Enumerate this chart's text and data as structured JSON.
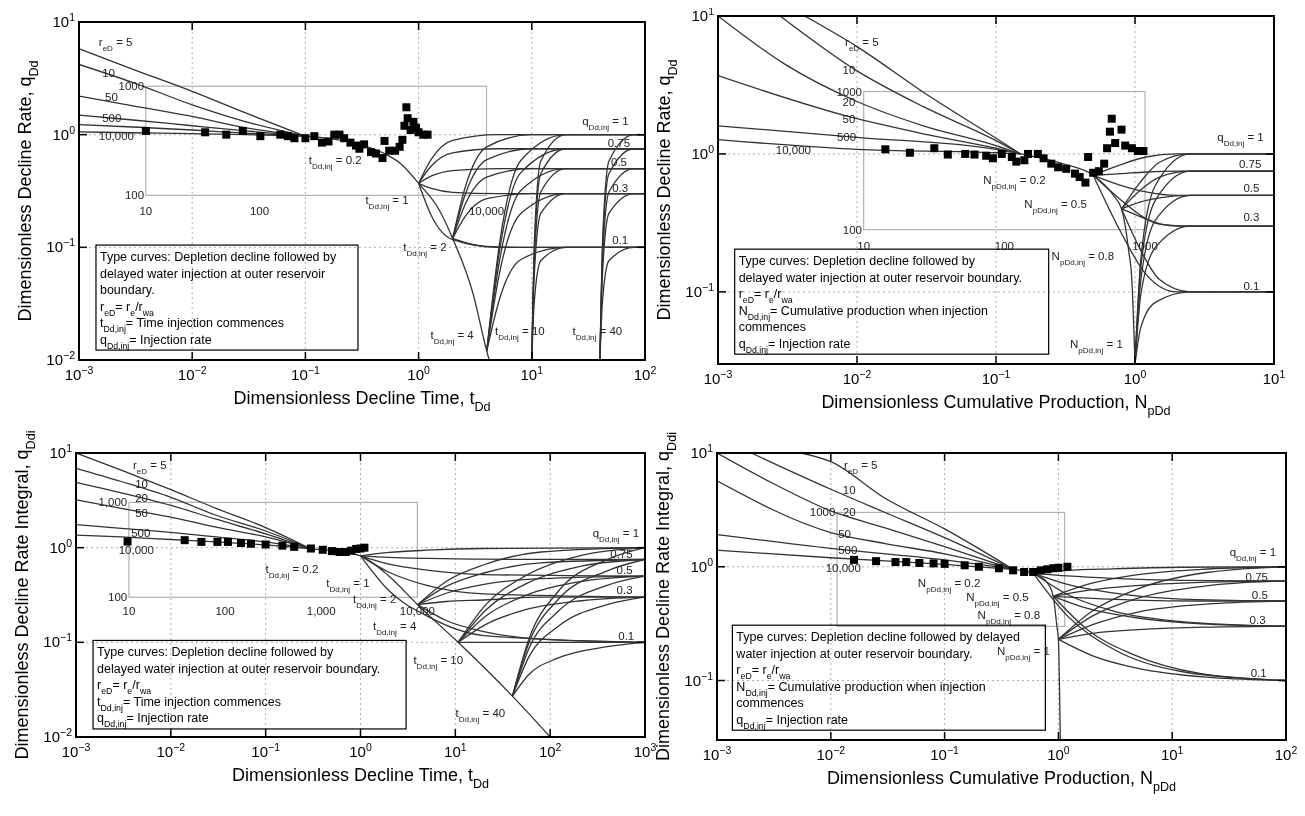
{
  "chart_data": [
    {
      "type": "line",
      "color": "#333333",
      "log": "xy",
      "grid": true,
      "xlabel": "Dimensionless Decline Time, t$_{Dd}$",
      "ylabel": "Dimensionless Decline Rate, q$_{Dd}$",
      "xlim": [
        0.001,
        100
      ],
      "ylim": [
        0.01,
        10
      ],
      "xticks": [
        {
          "value": 0.001,
          "label": "10$^{−3}$"
        },
        {
          "value": 0.01,
          "label": "10$^{−2}$"
        },
        {
          "value": 0.1,
          "label": "10$^{−1}$"
        },
        {
          "value": 1,
          "label": "10$^{0}$"
        },
        {
          "value": 10,
          "label": "10$^{1}$"
        },
        {
          "value": 100,
          "label": "10$^{2}$"
        }
      ],
      "yticks": [
        {
          "value": 0.01,
          "label": "10$^{−2}$"
        },
        {
          "value": 0.1,
          "label": "10$^{−1}$"
        },
        {
          "value": 1,
          "label": "10$^{0}$"
        },
        {
          "value": 10,
          "label": "10$^{1}$"
        }
      ],
      "series": [
        {
          "x": [
            0.001,
            0.003,
            0.01,
            0.03,
            0.1
          ],
          "values": [
            5.8,
            3.8,
            2.42,
            1.55,
            0.97
          ]
        },
        {
          "x": [
            0.001,
            0.003,
            0.01,
            0.03,
            0.1
          ],
          "values": [
            4.2,
            2.9,
            1.84,
            1.3,
            0.97
          ]
        },
        {
          "x": [
            0.001,
            0.003,
            0.01,
            0.03,
            0.1
          ],
          "values": [
            2.2,
            1.8,
            1.45,
            1.15,
            0.97
          ]
        },
        {
          "x": [
            0.001,
            0.003,
            0.01,
            0.03,
            0.1
          ],
          "values": [
            1.49,
            1.35,
            1.2,
            1.08,
            0.97
          ]
        },
        {
          "x": [
            0.001,
            0.003,
            0.01,
            0.03,
            0.1
          ],
          "values": [
            1.23,
            1.17,
            1.1,
            1.03,
            0.97
          ]
        },
        {
          "x": [
            0.001,
            0.003,
            0.01,
            0.03,
            0.1
          ],
          "values": [
            1.06,
            1.04,
            1.02,
            1.0,
            0.97
          ]
        },
        {
          "x": [
            0.1,
            0.3,
            0.5,
            0.7,
            1,
            1.5,
            2,
            3,
            4,
            4.2
          ],
          "values": [
            0.97,
            0.82,
            0.68,
            0.55,
            0.37,
            0.22,
            0.12,
            0.04,
            0.012,
            0.01
          ]
        },
        {
          "x": [
            1,
            1.3,
            2,
            5,
            100
          ],
          "values": [
            0.37,
            0.61,
            0.89,
            1,
            1
          ]
        },
        {
          "x": [
            1,
            1.3,
            2,
            5,
            100
          ],
          "values": [
            0.37,
            0.53,
            0.69,
            0.75,
            0.75
          ]
        },
        {
          "x": [
            1,
            1.3,
            2,
            5,
            100
          ],
          "values": [
            0.37,
            0.43,
            0.48,
            0.5,
            0.5
          ]
        },
        {
          "x": [
            1,
            1.3,
            2,
            5,
            100
          ],
          "values": [
            0.37,
            0.333,
            0.308,
            0.3,
            0.3
          ]
        },
        {
          "x": [
            1,
            1.3,
            2,
            5,
            100
          ],
          "values": [
            0.37,
            0.19,
            0.117,
            0.1,
            0.1
          ]
        },
        {
          "x": [
            2,
            2.6,
            4,
            10,
            100
          ],
          "values": [
            0.12,
            0.35,
            0.78,
            1,
            1
          ]
        },
        {
          "x": [
            2,
            2.6,
            4,
            10,
            100
          ],
          "values": [
            0.12,
            0.3,
            0.6,
            0.75,
            0.75
          ]
        },
        {
          "x": [
            2,
            2.6,
            4,
            10,
            100
          ],
          "values": [
            0.12,
            0.245,
            0.42,
            0.5,
            0.5
          ]
        },
        {
          "x": [
            2,
            2.6,
            4,
            10,
            100
          ],
          "values": [
            0.12,
            0.19,
            0.27,
            0.3,
            0.3
          ]
        },
        {
          "x": [
            2,
            2.6,
            4,
            10,
            100
          ],
          "values": [
            0.12,
            0.11,
            0.102,
            0.1,
            0.1
          ]
        },
        {
          "x": [
            4,
            5.2,
            8,
            20,
            100
          ],
          "values": [
            0.012,
            0.11,
            0.59,
            1,
            1
          ]
        },
        {
          "x": [
            4,
            5.2,
            8,
            20,
            100
          ],
          "values": [
            0.012,
            0.095,
            0.46,
            0.75,
            0.75
          ]
        },
        {
          "x": [
            4,
            5.2,
            8,
            20,
            100
          ],
          "values": [
            0.012,
            0.077,
            0.32,
            0.5,
            0.5
          ]
        },
        {
          "x": [
            4,
            5.2,
            8,
            20,
            100
          ],
          "values": [
            0.012,
            0.06,
            0.2,
            0.3,
            0.3
          ]
        },
        {
          "x": [
            4,
            5.2,
            8,
            20,
            100
          ],
          "values": [
            0.012,
            0.035,
            0.078,
            0.1,
            0.1
          ]
        },
        {
          "x": [
            10,
            10.5,
            12,
            20,
            100
          ],
          "values": [
            0.01,
            0.1,
            0.58,
            1,
            1
          ]
        },
        {
          "x": [
            10,
            10.5,
            12,
            20,
            100
          ],
          "values": [
            0.01,
            0.087,
            0.45,
            0.75,
            0.75
          ]
        },
        {
          "x": [
            10,
            10.5,
            12,
            20,
            100
          ],
          "values": [
            0.01,
            0.071,
            0.31,
            0.5,
            0.5
          ]
        },
        {
          "x": [
            10,
            10.5,
            12,
            20,
            100
          ],
          "values": [
            0.01,
            0.055,
            0.2,
            0.3,
            0.3
          ]
        },
        {
          "x": [
            10,
            10.5,
            12,
            20,
            100
          ],
          "values": [
            0.01,
            0.032,
            0.076,
            0.1,
            0.1
          ]
        },
        {
          "x": [
            40,
            42,
            48,
            80,
            100
          ],
          "values": [
            0.01,
            0.1,
            0.58,
            1,
            1
          ]
        },
        {
          "x": [
            40,
            42,
            48,
            80,
            100
          ],
          "values": [
            0.01,
            0.087,
            0.45,
            0.75,
            0.75
          ]
        },
        {
          "x": [
            40,
            42,
            48,
            80,
            100
          ],
          "values": [
            0.01,
            0.071,
            0.31,
            0.5,
            0.5
          ]
        },
        {
          "x": [
            40,
            42,
            48,
            80,
            100
          ],
          "values": [
            0.01,
            0.055,
            0.2,
            0.3,
            0.3
          ]
        },
        {
          "x": [
            40,
            42,
            48,
            80,
            100
          ],
          "values": [
            0.01,
            0.032,
            0.076,
            0.1,
            0.1
          ]
        },
        {
          "type": "scatter",
          "color": "#000000",
          "marker": "square",
          "x": [
            0.0039,
            0.013,
            0.02,
            0.028,
            0.04,
            0.06,
            0.07,
            0.08,
            0.1,
            0.12,
            0.14,
            0.16,
            0.18,
            0.2,
            0.22,
            0.25,
            0.28,
            0.3,
            0.33,
            0.38,
            0.42,
            0.48,
            0.5,
            0.55,
            0.62,
            0.68,
            0.72,
            0.75,
            0.78,
            0.8,
            0.85,
            0.9,
            0.95,
            1.0,
            1.1,
            1.2
          ],
          "values": [
            1.08,
            1.05,
            1.0,
            1.08,
            0.97,
            1.0,
            0.97,
            0.93,
            0.93,
            0.97,
            0.85,
            0.87,
            1.0,
            1.0,
            0.93,
            0.85,
            0.8,
            0.75,
            0.82,
            0.7,
            0.68,
            0.62,
            0.88,
            0.72,
            0.72,
            0.78,
            0.9,
            1.2,
            1.75,
            1.4,
            1.1,
            1.3,
            1.15,
            1.05,
            1.0,
            1.0
          ]
        }
      ],
      "annotations": [
        "r$_{eD}$ = 5",
        "10",
        "50",
        "500",
        "10,000",
        "t$_{Dd,inj}$ = 0.2",
        "t$_{Dd,inj}$ = 1",
        "t$_{Dd,inj}$ = 2",
        "t$_{Dd,inj}$ = 4",
        "t$_{Dd,inj}$ = 10",
        "t$_{Dd,inj}$ = 40",
        "q$_{Dd,inj}$ = 1",
        "0.75",
        "0.5",
        "0.3",
        "0.1",
        "10",
        "100",
        "10,000",
        "100",
        "1000",
        "Type curves: Depletion decline followed by\ndelayed water injection at outer reservoir\nboundary.\nr$_{eD}$= r$_{e}$/r$_{wa}$\nt$_{Dd,inj}$= Time injection commences\nq$_{Dd,inj}$= Injection rate"
      ]
    },
    {
      "type": "line",
      "color": "#333333",
      "log": "xy",
      "grid": true,
      "xlabel": "Dimensionless Cumulative Production, N$_{pDd}$",
      "ylabel": "Dimensionless Decline Rate, q$_{Dd}$",
      "xlim": [
        0.001,
        10
      ],
      "ylim": [
        0.03,
        10
      ],
      "xticks": [
        {
          "value": 0.001,
          "label": "10$^{−3}$"
        },
        {
          "value": 0.01,
          "label": "10$^{−2}$"
        },
        {
          "value": 0.1,
          "label": "10$^{−1}$"
        },
        {
          "value": 1,
          "label": "10$^{0}$"
        },
        {
          "value": 10,
          "label": "10$^{1}$"
        }
      ],
      "yticks": [
        {
          "value": 0.1,
          "label": "10$^{−1}$"
        },
        {
          "value": 1,
          "label": "10$^{0}$"
        },
        {
          "value": 10,
          "label": "10$^{1}$"
        }
      ],
      "series": [
        {
          "x": [
            0.0042,
            0.01,
            0.03,
            0.1,
            0.15
          ],
          "values": [
            10,
            6,
            2.8,
            1.3,
            1.0
          ]
        },
        {
          "x": [
            0.0028,
            0.01,
            0.03,
            0.1,
            0.15
          ],
          "values": [
            10,
            4,
            2.2,
            1.25,
            1.0
          ]
        },
        {
          "x": [
            0.001,
            0.003,
            0.01,
            0.03,
            0.1,
            0.15
          ],
          "values": [
            10,
            4.5,
            2.4,
            1.6,
            1.15,
            1.0
          ]
        },
        {
          "x": [
            0.001,
            0.01,
            0.03,
            0.1,
            0.15
          ],
          "values": [
            3.7,
            1.8,
            1.4,
            1.1,
            1.0
          ]
        },
        {
          "x": [
            0.001,
            0.01,
            0.1,
            0.15
          ],
          "values": [
            1.6,
            1.32,
            1.08,
            1.0
          ]
        },
        {
          "x": [
            0.001,
            0.01,
            0.1,
            0.15
          ],
          "values": [
            1.27,
            1.08,
            1.02,
            1.0
          ]
        },
        {
          "x": [
            0.15,
            0.3,
            0.5,
            0.7,
            0.8,
            0.9,
            0.95,
            1.0
          ],
          "values": [
            1.0,
            0.85,
            0.7,
            0.5,
            0.4,
            0.2,
            0.12,
            0.03
          ]
        },
        {
          "x": [
            0.5,
            0.8,
            1.2,
            2,
            10
          ],
          "values": [
            0.7,
            0.84,
            0.95,
            1,
            1
          ]
        },
        {
          "x": [
            0.5,
            0.8,
            1.2,
            2,
            10
          ],
          "values": [
            0.7,
            0.72,
            0.74,
            0.75,
            0.75
          ]
        },
        {
          "x": [
            0.5,
            0.8,
            1.2,
            2,
            10
          ],
          "values": [
            0.7,
            0.59,
            0.53,
            0.5,
            0.5
          ]
        },
        {
          "x": [
            0.5,
            0.8,
            1.2,
            2,
            10
          ],
          "values": [
            0.7,
            0.46,
            0.34,
            0.3,
            0.3
          ]
        },
        {
          "x": [
            0.5,
            0.8,
            1.2,
            2,
            10
          ],
          "values": [
            0.7,
            0.265,
            0.134,
            0.1,
            0.1
          ]
        },
        {
          "x": [
            0.8,
            1.1,
            1.5,
            2.5,
            10
          ],
          "values": [
            0.4,
            0.63,
            0.87,
            1,
            1
          ]
        },
        {
          "x": [
            0.8,
            1.1,
            1.5,
            2.5,
            10
          ],
          "values": [
            0.4,
            0.55,
            0.68,
            0.75,
            0.75
          ]
        },
        {
          "x": [
            0.8,
            1.1,
            1.5,
            2.5,
            10
          ],
          "values": [
            0.4,
            0.45,
            0.48,
            0.5,
            0.5
          ]
        },
        {
          "x": [
            0.8,
            1.1,
            1.5,
            2.5,
            10
          ],
          "values": [
            0.4,
            0.35,
            0.31,
            0.3,
            0.3
          ]
        },
        {
          "x": [
            0.8,
            1.1,
            1.5,
            2.5,
            10
          ],
          "values": [
            0.4,
            0.2,
            0.123,
            0.1,
            0.1
          ]
        },
        {
          "x": [
            1.0,
            1.1,
            1.4,
            2.5,
            10
          ],
          "values": [
            0.03,
            0.17,
            0.59,
            1,
            1
          ]
        },
        {
          "x": [
            1.0,
            1.1,
            1.4,
            2.5,
            10
          ],
          "values": [
            0.03,
            0.15,
            0.46,
            0.75,
            0.75
          ]
        },
        {
          "x": [
            1.0,
            1.1,
            1.4,
            2.5,
            10
          ],
          "values": [
            0.03,
            0.12,
            0.33,
            0.5,
            0.5
          ]
        },
        {
          "x": [
            1.0,
            1.1,
            1.4,
            2.5,
            10
          ],
          "values": [
            0.03,
            0.095,
            0.21,
            0.3,
            0.3
          ]
        },
        {
          "x": [
            1.0,
            1.1,
            1.4,
            2.5,
            10
          ],
          "values": [
            0.03,
            0.055,
            0.084,
            0.1,
            0.1
          ]
        },
        {
          "type": "scatter",
          "color": "#000000",
          "marker": "square",
          "x": [
            0.016,
            0.024,
            0.036,
            0.045,
            0.06,
            0.07,
            0.085,
            0.095,
            0.11,
            0.13,
            0.14,
            0.16,
            0.17,
            0.2,
            0.22,
            0.25,
            0.28,
            0.32,
            0.37,
            0.4,
            0.44,
            0.46,
            0.5,
            0.55,
            0.6,
            0.63,
            0.66,
            0.68,
            0.72,
            0.8,
            0.85,
            0.95,
            1.05,
            1.15
          ],
          "values": [
            1.08,
            1.02,
            1.1,
            0.99,
            1.0,
            0.99,
            0.97,
            0.93,
            1.0,
            0.95,
            0.88,
            0.9,
            1.0,
            1.0,
            0.93,
            0.85,
            0.8,
            0.78,
            0.72,
            0.68,
            0.62,
            0.95,
            0.73,
            0.75,
            0.85,
            1.1,
            1.45,
            1.8,
            1.2,
            1.5,
            1.15,
            1.1,
            1.05,
            1.05
          ]
        }
      ],
      "annotations": [
        "r$_{eD}$ = 5",
        "10",
        "20",
        "50",
        "500",
        "10,000",
        "N$_{pDd,inj}$ = 0.2",
        "N$_{pDd,inj}$ = 0.5",
        "N$_{pDd,inj}$ = 0.8",
        "N$_{pDd,inj}$ = 1",
        "q$_{Dd,inj}$ = 1",
        "0.75",
        "0.5",
        "0.3",
        "0.1",
        "10",
        "100",
        "1000",
        "100",
        "1000",
        "Type curves: Depletion decline followed by\ndelayed water injection at outer reservoir boundary.\nr$_{eD}$= r$_{e}$/r$_{wa}$\nN$_{Dd,inj}$= Cumulative production when injection\ncommences\nq$_{Dd,inj}$= Injection rate"
      ]
    },
    {
      "type": "line",
      "color": "#333333",
      "log": "xy",
      "grid": true,
      "xlabel": "Dimensionless Decline Time, t$_{Dd}$",
      "ylabel": "Dimensionless Decline Rate Integral, q$_{Ddi}$",
      "xlim": [
        0.001,
        1000
      ],
      "ylim": [
        0.01,
        10
      ],
      "xticks": [
        {
          "value": 0.001,
          "label": "10$^{−3}$"
        },
        {
          "value": 0.01,
          "label": "10$^{−2}$"
        },
        {
          "value": 0.1,
          "label": "10$^{−1}$"
        },
        {
          "value": 1,
          "label": "10$^{0}$"
        },
        {
          "value": 10,
          "label": "10$^{1}$"
        },
        {
          "value": 100,
          "label": "10$^{2}$"
        },
        {
          "value": 1000,
          "label": "10$^{3}$"
        }
      ],
      "yticks": [
        {
          "value": 0.01,
          "label": "10$^{−2}$"
        },
        {
          "value": 0.1,
          "label": "10$^{−1}$"
        },
        {
          "value": 1,
          "label": "10$^{0}$"
        },
        {
          "value": 10,
          "label": "10$^{1}$"
        }
      ],
      "series": [
        {
          "x": [
            0.001,
            0.003,
            0.01,
            0.03,
            0.1,
            0.3
          ],
          "values": [
            10,
            6.6,
            4.1,
            2.6,
            1.63,
            0.97
          ]
        },
        {
          "x": [
            0.001,
            0.003,
            0.01,
            0.03,
            0.1,
            0.3
          ],
          "values": [
            6.9,
            5.0,
            3.4,
            2.2,
            1.5,
            0.97
          ]
        },
        {
          "x": [
            0.001,
            0.003,
            0.01,
            0.03,
            0.1,
            0.3
          ],
          "values": [
            4.9,
            3.8,
            2.8,
            2.0,
            1.4,
            0.97
          ]
        },
        {
          "x": [
            0.001,
            0.003,
            0.01,
            0.03,
            0.1,
            0.3
          ],
          "values": [
            3.2,
            2.6,
            2.1,
            1.65,
            1.3,
            0.97
          ]
        },
        {
          "x": [
            0.001,
            0.003,
            0.01,
            0.03,
            0.1,
            0.3
          ],
          "values": [
            1.75,
            1.6,
            1.45,
            1.3,
            1.15,
            0.97
          ]
        },
        {
          "x": [
            0.001,
            0.003,
            0.01,
            0.03,
            0.1,
            0.3
          ],
          "values": [
            1.36,
            1.3,
            1.22,
            1.15,
            1.07,
            0.97
          ]
        },
        {
          "x": [
            0.3,
            0.5,
            1,
            2,
            4,
            10.7,
            40,
            100
          ],
          "values": [
            0.97,
            0.93,
            0.82,
            0.5,
            0.25,
            0.1,
            0.027,
            0.01
          ]
        },
        {
          "x": [
            1,
            2,
            5,
            20,
            1000
          ],
          "values": [
            0.82,
            0.89,
            0.94,
            0.98,
            1
          ]
        },
        {
          "x": [
            1,
            2,
            5,
            20,
            1000
          ],
          "values": [
            0.82,
            0.79,
            0.77,
            0.755,
            0.75
          ]
        },
        {
          "x": [
            1,
            2,
            5,
            20,
            1000
          ],
          "values": [
            0.82,
            0.67,
            0.58,
            0.52,
            0.5
          ]
        },
        {
          "x": [
            1,
            2,
            5,
            20,
            1000
          ],
          "values": [
            0.82,
            0.55,
            0.4,
            0.325,
            0.3
          ]
        },
        {
          "x": [
            1,
            2,
            5,
            20,
            1000
          ],
          "values": [
            0.82,
            0.35,
            0.19,
            0.118,
            0.1
          ]
        },
        {
          "x": [
            4,
            8,
            20,
            80,
            1000
          ],
          "values": [
            0.25,
            0.44,
            0.66,
            0.9,
            1
          ]
        },
        {
          "x": [
            4,
            8,
            20,
            80,
            1000
          ],
          "values": [
            0.25,
            0.39,
            0.54,
            0.69,
            0.75
          ]
        },
        {
          "x": [
            4,
            8,
            20,
            80,
            1000
          ],
          "values": [
            0.25,
            0.33,
            0.41,
            0.47,
            0.5
          ]
        },
        {
          "x": [
            4,
            8,
            20,
            80,
            1000
          ],
          "values": [
            0.25,
            0.27,
            0.28,
            0.3,
            0.3
          ]
        },
        {
          "x": [
            4,
            8,
            20,
            80,
            1000
          ],
          "values": [
            0.25,
            0.17,
            0.13,
            0.108,
            0.1
          ]
        },
        {
          "x": [
            10.7,
            21,
            54,
            214,
            1000
          ],
          "values": [
            0.1,
            0.25,
            0.5,
            0.83,
            1
          ]
        },
        {
          "x": [
            10.7,
            21,
            54,
            214,
            1000
          ],
          "values": [
            0.1,
            0.22,
            0.41,
            0.64,
            0.75
          ]
        },
        {
          "x": [
            10.7,
            21,
            54,
            214,
            1000
          ],
          "values": [
            0.1,
            0.19,
            0.31,
            0.44,
            0.5
          ]
        },
        {
          "x": [
            10.7,
            21,
            54,
            214,
            1000
          ],
          "values": [
            0.1,
            0.155,
            0.22,
            0.275,
            0.3
          ]
        },
        {
          "x": [
            10.7,
            21,
            54,
            214,
            1000
          ],
          "values": [
            0.1,
            0.1,
            0.1,
            0.1,
            0.1
          ]
        },
        {
          "x": [
            40,
            60,
            120,
            400,
            1000
          ],
          "values": [
            0.027,
            0.11,
            0.34,
            0.75,
            1
          ]
        },
        {
          "x": [
            40,
            60,
            120,
            400,
            1000
          ],
          "values": [
            0.027,
            0.1,
            0.28,
            0.57,
            0.75
          ]
        },
        {
          "x": [
            40,
            60,
            120,
            400,
            1000
          ],
          "values": [
            0.027,
            0.087,
            0.21,
            0.4,
            0.5
          ]
        },
        {
          "x": [
            40,
            60,
            120,
            400,
            1000
          ],
          "values": [
            0.027,
            0.071,
            0.146,
            0.25,
            0.3
          ]
        },
        {
          "x": [
            40,
            60,
            120,
            400,
            1000
          ],
          "values": [
            0.027,
            0.046,
            0.068,
            0.09,
            0.1
          ]
        },
        {
          "type": "scatter",
          "color": "#000000",
          "marker": "square",
          "x": [
            0.0035,
            0.014,
            0.021,
            0.031,
            0.04,
            0.055,
            0.07,
            0.1,
            0.15,
            0.2,
            0.3,
            0.4,
            0.5,
            0.6,
            0.7,
            0.8,
            0.9,
            1.0,
            1.1
          ],
          "values": [
            1.16,
            1.2,
            1.15,
            1.15,
            1.15,
            1.12,
            1.1,
            1.08,
            1.05,
            1.02,
            0.98,
            0.95,
            0.92,
            0.9,
            0.9,
            0.93,
            0.97,
            0.98,
            1.0
          ]
        }
      ],
      "annotations": [
        "r$_{eD}$ = 5",
        "10",
        "20",
        "50",
        "500",
        "10,000",
        "t$_{Dd,inj}$ = 0.2",
        "t$_{Dd,inj}$ = 1",
        "t$_{Dd,inj}$ = 2",
        "t$_{Dd,inj}$ = 4",
        "t$_{Dd,inj}$ = 10",
        "t$_{Dd,inj}$ = 40",
        "q$_{Dd,inj}$ = 1",
        "0.75",
        "0.5",
        "0.3",
        "0.1",
        "10",
        "100",
        "1,000",
        "10,000",
        "100",
        "1,000",
        "Type curves: Depletion decline followed by\ndelayed water injection at outer reservoir boundary.\nr$_{eD}$= r$_{e}$/r$_{wa}$\nt$_{Dd,inj}$= Time injection commences\nq$_{Dd,inj}$= Injection rate"
      ]
    },
    {
      "type": "line",
      "color": "#333333",
      "log": "xy",
      "grid": true,
      "xlabel": "Dimensionless Cumulative Production, N$_{pDd}$",
      "ylabel": "Dimensionless Decline Rate Integral, q$_{Ddi}$",
      "xlim": [
        0.001,
        100
      ],
      "ylim": [
        0.03,
        10
      ],
      "xticks": [
        {
          "value": 0.001,
          "label": "10$^{−3}$"
        },
        {
          "value": 0.01,
          "label": "10$^{−2}$"
        },
        {
          "value": 0.1,
          "label": "10$^{−1}$"
        },
        {
          "value": 1,
          "label": "10$^{0}$"
        },
        {
          "value": 10,
          "label": "10$^{1}$"
        },
        {
          "value": 100,
          "label": "10$^{2}$"
        }
      ],
      "yticks": [
        {
          "value": 0.1,
          "label": "10$^{−1}$"
        },
        {
          "value": 1,
          "label": "10$^{0}$"
        },
        {
          "value": 10,
          "label": "10$^{1}$"
        }
      ],
      "series": [
        {
          "x": [
            0.0055,
            0.01,
            0.03,
            0.1,
            0.4
          ],
          "values": [
            10,
            8.4,
            4.0,
            2.15,
            0.95
          ]
        },
        {
          "x": [
            0.002,
            0.01,
            0.03,
            0.1,
            0.4
          ],
          "values": [
            10,
            4.8,
            3.0,
            1.8,
            0.95
          ]
        },
        {
          "x": [
            0.001,
            0.003,
            0.01,
            0.03,
            0.1,
            0.4
          ],
          "values": [
            10,
            5.5,
            3.1,
            2.2,
            1.5,
            0.95
          ]
        },
        {
          "x": [
            0.001,
            0.01,
            0.03,
            0.1,
            0.4
          ],
          "values": [
            5.7,
            2.0,
            1.6,
            1.3,
            0.95
          ]
        },
        {
          "x": [
            0.001,
            0.01,
            0.1,
            0.4
          ],
          "values": [
            1.92,
            1.45,
            1.15,
            0.95
          ]
        },
        {
          "x": [
            0.001,
            0.01,
            0.1,
            0.4
          ],
          "values": [
            1.4,
            1.2,
            1.05,
            0.95
          ]
        },
        {
          "x": [
            0.4,
            0.6,
            0.8,
            0.9,
            0.97,
            1.0,
            1.02,
            1.04
          ],
          "values": [
            0.95,
            0.88,
            0.72,
            0.55,
            0.3,
            0.23,
            0.1,
            0.03
          ]
        },
        {
          "x": [
            0.6,
            1.2,
            3,
            12,
            100
          ],
          "values": [
            0.88,
            0.93,
            0.96,
            0.99,
            1
          ]
        },
        {
          "x": [
            0.6,
            1.2,
            3,
            12,
            100
          ],
          "values": [
            0.88,
            0.83,
            0.79,
            0.76,
            0.75
          ]
        },
        {
          "x": [
            0.6,
            1.2,
            3,
            12,
            100
          ],
          "values": [
            0.88,
            0.7,
            0.59,
            0.52,
            0.5
          ]
        },
        {
          "x": [
            0.6,
            1.2,
            3,
            12,
            100
          ],
          "values": [
            0.88,
            0.57,
            0.41,
            0.33,
            0.3
          ]
        },
        {
          "x": [
            0.6,
            1.2,
            3,
            12,
            100
          ],
          "values": [
            0.88,
            0.37,
            0.19,
            0.12,
            0.1
          ]
        },
        {
          "x": [
            0.9,
            1.8,
            4.5,
            18,
            100
          ],
          "values": [
            0.55,
            0.7,
            0.84,
            0.95,
            1
          ]
        },
        {
          "x": [
            0.9,
            1.8,
            4.5,
            18,
            100
          ],
          "values": [
            0.55,
            0.62,
            0.68,
            0.73,
            0.75
          ]
        },
        {
          "x": [
            0.9,
            1.8,
            4.5,
            18,
            100
          ],
          "values": [
            0.55,
            0.53,
            0.51,
            0.5,
            0.5
          ]
        },
        {
          "x": [
            0.9,
            1.8,
            4.5,
            18,
            100
          ],
          "values": [
            0.55,
            0.43,
            0.36,
            0.315,
            0.3
          ]
        },
        {
          "x": [
            0.9,
            1.8,
            4.5,
            18,
            100
          ],
          "values": [
            0.55,
            0.28,
            0.17,
            0.115,
            0.1
          ]
        },
        {
          "x": [
            1.0,
            2,
            5,
            20,
            100
          ],
          "values": [
            0.23,
            0.41,
            0.64,
            0.89,
            1
          ]
        },
        {
          "x": [
            1.0,
            2,
            5,
            20,
            100
          ],
          "values": [
            0.23,
            0.37,
            0.53,
            0.68,
            0.75
          ]
        },
        {
          "x": [
            1.0,
            2,
            5,
            20,
            100
          ],
          "values": [
            0.23,
            0.31,
            0.4,
            0.47,
            0.5
          ]
        },
        {
          "x": [
            1.0,
            2,
            5,
            20,
            100
          ],
          "values": [
            0.23,
            0.26,
            0.28,
            0.295,
            0.3
          ]
        },
        {
          "x": [
            1.0,
            2,
            5,
            20,
            100
          ],
          "values": [
            0.23,
            0.165,
            0.128,
            0.107,
            0.1
          ]
        },
        {
          "type": "scatter",
          "color": "#000000",
          "marker": "square",
          "x": [
            0.016,
            0.025,
            0.037,
            0.046,
            0.06,
            0.08,
            0.1,
            0.15,
            0.2,
            0.3,
            0.4,
            0.5,
            0.6,
            0.7,
            0.8,
            0.9,
            1.0,
            1.2
          ],
          "values": [
            1.15,
            1.12,
            1.1,
            1.1,
            1.08,
            1.07,
            1.06,
            1.03,
            1.0,
            0.97,
            0.93,
            0.9,
            0.9,
            0.93,
            0.95,
            0.97,
            0.98,
            1.0
          ]
        }
      ],
      "annotations": [
        "r$_{eD}$ = 5",
        "10",
        "20",
        "50",
        "500",
        "10,000",
        "N$_{pDd,inj}$ = 0.2",
        "N$_{pDd,inj}$ = 0.5",
        "N$_{pDd,inj}$ = 0.8",
        "N$_{pDd,inj}$ = 1",
        "q$_{Dd,inj}$ = 1",
        "0.75",
        "0.5",
        "0.3",
        "0.1",
        "1000",
        "Type curves: Depletion decline followed by delayed\nwater injection at outer reservoir boundary.\nr$_{eD}$= r$_{e}$/r$_{wa}$\nN$_{Dd,inj}$= Cumulative production when injection\ncommences\nq$_{Dd,inj}$= Injection rate"
      ]
    }
  ]
}
